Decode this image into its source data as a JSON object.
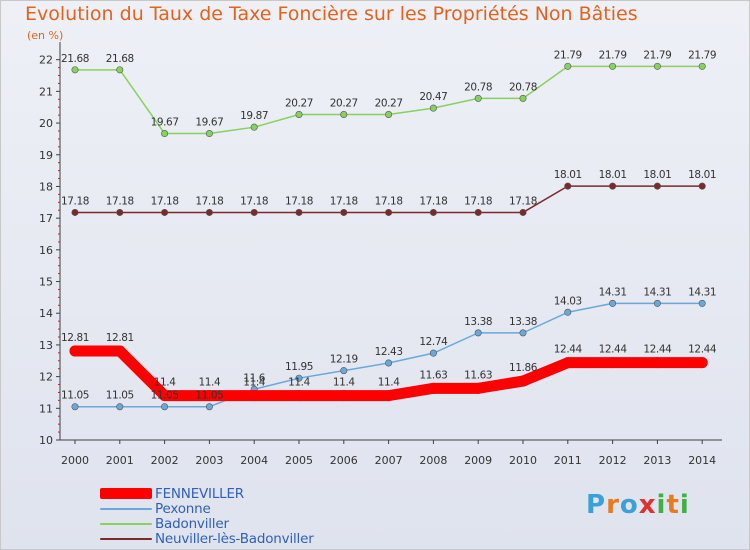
{
  "title": "Evolution du Taux de Taxe Foncière sur les Propriétés Non Bâties",
  "subtitle": "(en %)",
  "brand": {
    "letters": [
      "P",
      "r",
      "o",
      "x",
      "i",
      "t",
      "i"
    ],
    "colors": [
      "#3aa0d8",
      "#e87a20",
      "#3aa0d8",
      "#e03030",
      "#40b040",
      "#e87a20",
      "#40b040"
    ]
  },
  "chart_data": {
    "type": "line",
    "x": [
      "2000",
      "2001",
      "2002",
      "2003",
      "2004",
      "2005",
      "2006",
      "2007",
      "2008",
      "2009",
      "2010",
      "2011",
      "2012",
      "2013",
      "2014"
    ],
    "ylim": [
      10,
      22
    ],
    "yticks": [
      "10",
      "11",
      "12",
      "13",
      "14",
      "15",
      "16",
      "17",
      "18",
      "19",
      "20",
      "21",
      "22"
    ],
    "grid": false,
    "legend_position": "bottom-left",
    "series": [
      {
        "name": "FENNEVILLER",
        "color": "#ff0000",
        "values": [
          12.81,
          12.81,
          11.4,
          11.4,
          11.4,
          11.4,
          11.4,
          11.4,
          11.63,
          11.63,
          11.86,
          12.44,
          12.44,
          12.44,
          12.44
        ],
        "labels": [
          "12.81",
          "12.81",
          "11.4",
          "11.4",
          "11.4",
          "11.4",
          "11.4",
          "11.4",
          "11.63",
          "11.63",
          "11.86",
          "12.44",
          "12.44",
          "12.44",
          "12.44"
        ]
      },
      {
        "name": "Pexonne",
        "color": "#6aa8d8",
        "values": [
          11.05,
          11.05,
          11.05,
          11.05,
          11.6,
          11.95,
          12.19,
          12.43,
          12.74,
          13.38,
          13.38,
          14.03,
          14.31,
          14.31,
          14.31
        ],
        "labels": [
          "11.05",
          "11.05",
          "11.05",
          "11.05",
          "11.6",
          "11.95",
          "12.19",
          "12.43",
          "12.74",
          "13.38",
          "13.38",
          "14.03",
          "14.31",
          "14.31",
          "14.31"
        ]
      },
      {
        "name": "Badonviller",
        "color": "#88d060",
        "values": [
          21.68,
          21.68,
          19.67,
          19.67,
          19.87,
          20.27,
          20.27,
          20.27,
          20.47,
          20.78,
          20.78,
          21.79,
          21.79,
          21.79,
          21.79
        ],
        "labels": [
          "21.68",
          "21.68",
          "19.67",
          "19.67",
          "19.87",
          "20.27",
          "20.27",
          "20.27",
          "20.47",
          "20.78",
          "20.78",
          "21.79",
          "21.79",
          "21.79",
          "21.79"
        ]
      },
      {
        "name": "Neuviller-lès-Badonviller",
        "color": "#7a2a2a",
        "values": [
          17.18,
          17.18,
          17.18,
          17.18,
          17.18,
          17.18,
          17.18,
          17.18,
          17.18,
          17.18,
          17.18,
          18.01,
          18.01,
          18.01,
          18.01
        ],
        "labels": [
          "17.18",
          "17.18",
          "17.18",
          "17.18",
          "17.18",
          "17.18",
          "17.18",
          "17.18",
          "17.18",
          "17.18",
          "17.18",
          "18.01",
          "18.01",
          "18.01",
          "18.01"
        ]
      }
    ]
  }
}
